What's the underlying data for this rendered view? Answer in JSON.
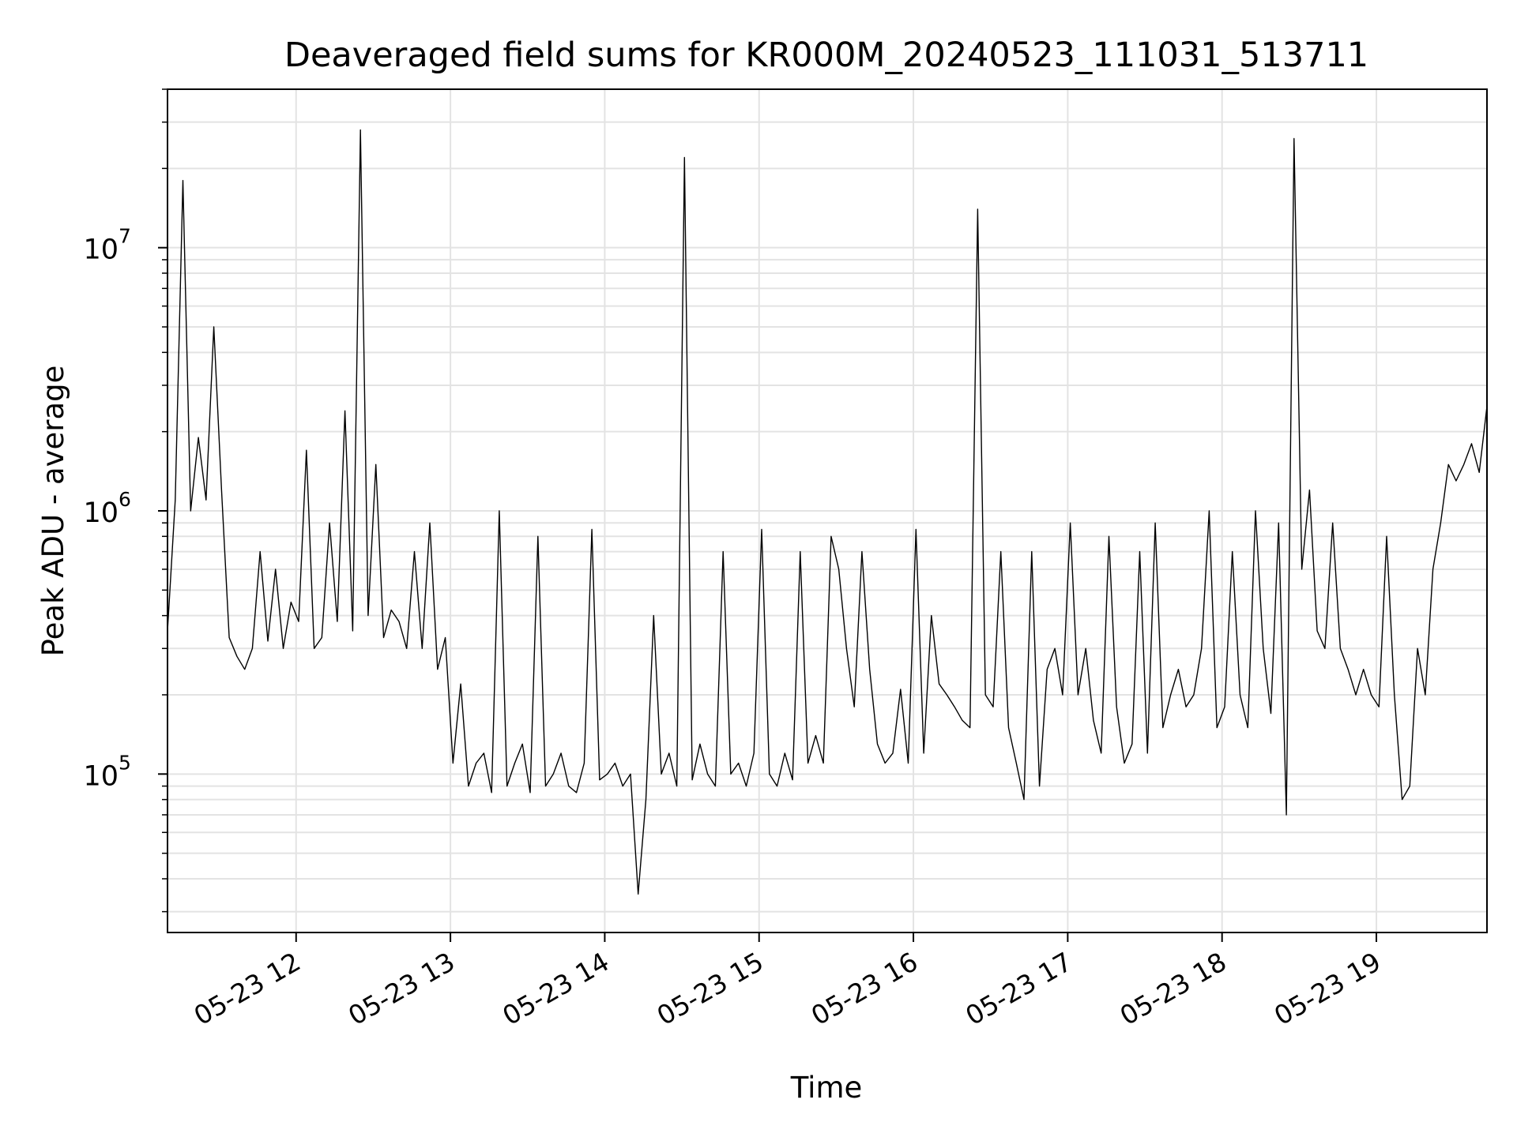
{
  "chart_data": {
    "type": "line",
    "title": "Deaveraged field sums for KR000M_20240523_111031_513711",
    "xlabel": "Time",
    "ylabel": "Peak ADU - average",
    "yscale": "log",
    "ylim": [
      25000,
      40000000
    ],
    "xlim": [
      "2024-05-23 11:10",
      "2024-05-23 19:43"
    ],
    "grid": true,
    "line_color": "#000000",
    "grid_color": "#e3e3e3",
    "x_ticks": [
      {
        "time": "2024-05-23 12:00",
        "label": "05-23 12"
      },
      {
        "time": "2024-05-23 13:00",
        "label": "05-23 13"
      },
      {
        "time": "2024-05-23 14:00",
        "label": "05-23 14"
      },
      {
        "time": "2024-05-23 15:00",
        "label": "05-23 15"
      },
      {
        "time": "2024-05-23 16:00",
        "label": "05-23 16"
      },
      {
        "time": "2024-05-23 17:00",
        "label": "05-23 17"
      },
      {
        "time": "2024-05-23 18:00",
        "label": "05-23 18"
      },
      {
        "time": "2024-05-23 19:00",
        "label": "05-23 19"
      }
    ],
    "y_ticks": [
      {
        "value": 100000,
        "base": "10",
        "exp": "5"
      },
      {
        "value": 1000000,
        "base": "10",
        "exp": "6"
      },
      {
        "value": 10000000,
        "base": "10",
        "exp": "7"
      }
    ],
    "series": [
      {
        "x": [
          "2024-05-23 11:10",
          "2024-05-23 11:13",
          "2024-05-23 11:16",
          "2024-05-23 11:19",
          "2024-05-23 11:22",
          "2024-05-23 11:25",
          "2024-05-23 11:28",
          "2024-05-23 11:31",
          "2024-05-23 11:34",
          "2024-05-23 11:37",
          "2024-05-23 11:40",
          "2024-05-23 11:43",
          "2024-05-23 11:46",
          "2024-05-23 11:49",
          "2024-05-23 11:52",
          "2024-05-23 11:55",
          "2024-05-23 11:58",
          "2024-05-23 12:01",
          "2024-05-23 12:04",
          "2024-05-23 12:07",
          "2024-05-23 12:10",
          "2024-05-23 12:13",
          "2024-05-23 12:16",
          "2024-05-23 12:19",
          "2024-05-23 12:22",
          "2024-05-23 12:25",
          "2024-05-23 12:28",
          "2024-05-23 12:31",
          "2024-05-23 12:34",
          "2024-05-23 12:37",
          "2024-05-23 12:40",
          "2024-05-23 12:43",
          "2024-05-23 12:46",
          "2024-05-23 12:49",
          "2024-05-23 12:52",
          "2024-05-23 12:55",
          "2024-05-23 12:58",
          "2024-05-23 13:01",
          "2024-05-23 13:04",
          "2024-05-23 13:07",
          "2024-05-23 13:10",
          "2024-05-23 13:13",
          "2024-05-23 13:16",
          "2024-05-23 13:19",
          "2024-05-23 13:22",
          "2024-05-23 13:25",
          "2024-05-23 13:28",
          "2024-05-23 13:31",
          "2024-05-23 13:34",
          "2024-05-23 13:37",
          "2024-05-23 13:40",
          "2024-05-23 13:43",
          "2024-05-23 13:46",
          "2024-05-23 13:49",
          "2024-05-23 13:52",
          "2024-05-23 13:55",
          "2024-05-23 13:58",
          "2024-05-23 14:01",
          "2024-05-23 14:04",
          "2024-05-23 14:07",
          "2024-05-23 14:10",
          "2024-05-23 14:13",
          "2024-05-23 14:16",
          "2024-05-23 14:19",
          "2024-05-23 14:22",
          "2024-05-23 14:25",
          "2024-05-23 14:28",
          "2024-05-23 14:31",
          "2024-05-23 14:34",
          "2024-05-23 14:37",
          "2024-05-23 14:40",
          "2024-05-23 14:43",
          "2024-05-23 14:46",
          "2024-05-23 14:49",
          "2024-05-23 14:52",
          "2024-05-23 14:55",
          "2024-05-23 14:58",
          "2024-05-23 15:01",
          "2024-05-23 15:04",
          "2024-05-23 15:07",
          "2024-05-23 15:10",
          "2024-05-23 15:13",
          "2024-05-23 15:16",
          "2024-05-23 15:19",
          "2024-05-23 15:22",
          "2024-05-23 15:25",
          "2024-05-23 15:28",
          "2024-05-23 15:31",
          "2024-05-23 15:34",
          "2024-05-23 15:37",
          "2024-05-23 15:40",
          "2024-05-23 15:43",
          "2024-05-23 15:46",
          "2024-05-23 15:49",
          "2024-05-23 15:52",
          "2024-05-23 15:55",
          "2024-05-23 15:58",
          "2024-05-23 16:01",
          "2024-05-23 16:04",
          "2024-05-23 16:07",
          "2024-05-23 16:10",
          "2024-05-23 16:13",
          "2024-05-23 16:16",
          "2024-05-23 16:19",
          "2024-05-23 16:22",
          "2024-05-23 16:25",
          "2024-05-23 16:28",
          "2024-05-23 16:31",
          "2024-05-23 16:34",
          "2024-05-23 16:37",
          "2024-05-23 16:40",
          "2024-05-23 16:43",
          "2024-05-23 16:46",
          "2024-05-23 16:49",
          "2024-05-23 16:52",
          "2024-05-23 16:55",
          "2024-05-23 16:58",
          "2024-05-23 17:01",
          "2024-05-23 17:04",
          "2024-05-23 17:07",
          "2024-05-23 17:10",
          "2024-05-23 17:13",
          "2024-05-23 17:16",
          "2024-05-23 17:19",
          "2024-05-23 17:22",
          "2024-05-23 17:25",
          "2024-05-23 17:28",
          "2024-05-23 17:31",
          "2024-05-23 17:34",
          "2024-05-23 17:37",
          "2024-05-23 17:40",
          "2024-05-23 17:43",
          "2024-05-23 17:46",
          "2024-05-23 17:49",
          "2024-05-23 17:52",
          "2024-05-23 17:55",
          "2024-05-23 17:58",
          "2024-05-23 18:01",
          "2024-05-23 18:04",
          "2024-05-23 18:07",
          "2024-05-23 18:10",
          "2024-05-23 18:13",
          "2024-05-23 18:16",
          "2024-05-23 18:19",
          "2024-05-23 18:22",
          "2024-05-23 18:25",
          "2024-05-23 18:28",
          "2024-05-23 18:31",
          "2024-05-23 18:34",
          "2024-05-23 18:37",
          "2024-05-23 18:40",
          "2024-05-23 18:43",
          "2024-05-23 18:46",
          "2024-05-23 18:49",
          "2024-05-23 18:52",
          "2024-05-23 18:55",
          "2024-05-23 18:58",
          "2024-05-23 19:01",
          "2024-05-23 19:04",
          "2024-05-23 19:07",
          "2024-05-23 19:10",
          "2024-05-23 19:13",
          "2024-05-23 19:16",
          "2024-05-23 19:19",
          "2024-05-23 19:22",
          "2024-05-23 19:25",
          "2024-05-23 19:28",
          "2024-05-23 19:31",
          "2024-05-23 19:34",
          "2024-05-23 19:37",
          "2024-05-23 19:40",
          "2024-05-23 19:43"
        ],
        "y": [
          350000,
          1100000,
          18000000,
          1000000,
          1900000,
          1100000,
          5000000,
          1200000,
          330000,
          280000,
          250000,
          300000,
          700000,
          320000,
          600000,
          300000,
          450000,
          380000,
          1700000,
          300000,
          330000,
          900000,
          380000,
          2400000,
          350000,
          28000000,
          400000,
          1500000,
          330000,
          420000,
          380000,
          300000,
          700000,
          300000,
          900000,
          250000,
          330000,
          110000,
          220000,
          90000,
          110000,
          120000,
          85000,
          1000000,
          90000,
          110000,
          130000,
          85000,
          800000,
          90000,
          100000,
          120000,
          90000,
          85000,
          110000,
          850000,
          95000,
          100000,
          110000,
          90000,
          100000,
          35000,
          80000,
          400000,
          100000,
          120000,
          90000,
          22000000,
          95000,
          130000,
          100000,
          90000,
          700000,
          100000,
          110000,
          90000,
          120000,
          850000,
          100000,
          90000,
          120000,
          95000,
          700000,
          110000,
          140000,
          110000,
          800000,
          600000,
          300000,
          180000,
          700000,
          250000,
          130000,
          110000,
          120000,
          210000,
          110000,
          850000,
          120000,
          400000,
          220000,
          200000,
          180000,
          160000,
          150000,
          14000000,
          200000,
          180000,
          700000,
          150000,
          110000,
          80000,
          700000,
          90000,
          250000,
          300000,
          200000,
          900000,
          200000,
          300000,
          160000,
          120000,
          800000,
          180000,
          110000,
          130000,
          700000,
          120000,
          900000,
          150000,
          200000,
          250000,
          180000,
          200000,
          300000,
          1000000,
          150000,
          180000,
          700000,
          200000,
          150000,
          1000000,
          300000,
          170000,
          900000,
          70000,
          26000000,
          600000,
          1200000,
          350000,
          300000,
          900000,
          300000,
          250000,
          200000,
          250000,
          200000,
          180000,
          800000,
          200000,
          80000,
          90000,
          300000,
          200000,
          600000,
          900000,
          1500000,
          1300000,
          1500000,
          1800000,
          1400000,
          2500000
        ]
      }
    ]
  }
}
